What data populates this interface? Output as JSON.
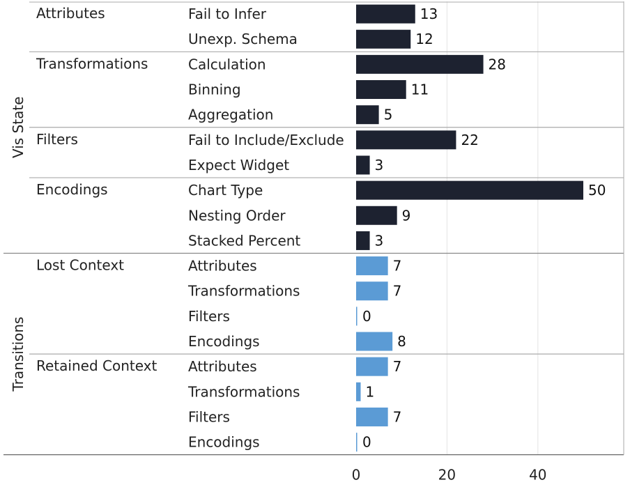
{
  "chart_data": {
    "type": "bar",
    "orientation": "horizontal",
    "xlim": [
      0,
      58
    ],
    "x_ticks": [
      0,
      20,
      40
    ],
    "grid": true,
    "colors": {
      "Vis State": "#1d2230",
      "Transitions": "#5b9bd5"
    },
    "groups": [
      {
        "label": "Vis State",
        "sections": [
          {
            "label": "Attributes",
            "rows": [
              {
                "label": "Fail to Infer",
                "value": 13
              },
              {
                "label": "Unexp. Schema",
                "value": 12
              }
            ]
          },
          {
            "label": "Transformations",
            "rows": [
              {
                "label": "Calculation",
                "value": 28
              },
              {
                "label": "Binning",
                "value": 11
              },
              {
                "label": "Aggregation",
                "value": 5
              }
            ]
          },
          {
            "label": "Filters",
            "rows": [
              {
                "label": "Fail to Include/Exclude",
                "value": 22
              },
              {
                "label": "Expect Widget",
                "value": 3
              }
            ]
          },
          {
            "label": "Encodings",
            "rows": [
              {
                "label": "Chart Type",
                "value": 50
              },
              {
                "label": "Nesting Order",
                "value": 9
              },
              {
                "label": "Stacked Percent",
                "value": 3
              }
            ]
          }
        ]
      },
      {
        "label": "Transitions",
        "sections": [
          {
            "label": "Lost Context",
            "rows": [
              {
                "label": "Attributes",
                "value": 7
              },
              {
                "label": "Transformations",
                "value": 7
              },
              {
                "label": "Filters",
                "value": 0
              },
              {
                "label": "Encodings",
                "value": 8
              }
            ]
          },
          {
            "label": "Retained Context",
            "rows": [
              {
                "label": "Attributes",
                "value": 7
              },
              {
                "label": "Transformations",
                "value": 1
              },
              {
                "label": "Filters",
                "value": 7
              },
              {
                "label": "Encodings",
                "value": 0
              }
            ]
          }
        ]
      }
    ]
  }
}
